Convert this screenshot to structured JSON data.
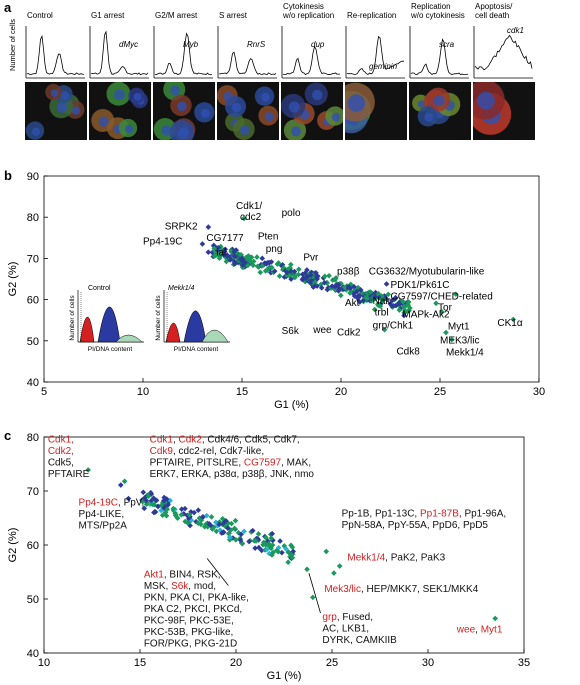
{
  "panel_a": {
    "letter": "a",
    "ylabel": "Number of cells",
    "phenotypes": [
      {
        "label": "Control",
        "gene": ""
      },
      {
        "label": "G1 arrest",
        "gene": "dMyc"
      },
      {
        "label": "G2/M arrest",
        "gene": "Myb"
      },
      {
        "label": "S arrest",
        "gene": "RnrS"
      },
      {
        "label": "Cytokinesis\nw/o replication",
        "gene": "dup"
      },
      {
        "label": "Re-replication",
        "gene": "geminin"
      },
      {
        "label": "Replication\nw/o cytokinesis",
        "gene": "scra"
      },
      {
        "label": "Apoptosis/\ncell death",
        "gene": "cdk1"
      }
    ]
  },
  "panel_b": {
    "letter": "b",
    "chart_data": {
      "type": "scatter",
      "xlabel": "G1 (%)",
      "ylabel": "G2 (%)",
      "xlim": [
        5,
        30
      ],
      "ylim": [
        40,
        90
      ],
      "xticks": [
        "5",
        "10",
        "15",
        "20",
        "25",
        "30"
      ],
      "yticks": [
        "40",
        "50",
        "60",
        "70",
        "80",
        "90"
      ],
      "colors": {
        "green": "#1a9a5a",
        "blue": "#2e3a9a"
      },
      "labels": [
        {
          "text": "Cdk1/",
          "x": 14.7,
          "y": 82.0
        },
        {
          "text": "cdc2",
          "x": 14.9,
          "y": 79.3
        },
        {
          "text": "polo",
          "x": 17.0,
          "y": 80.3
        },
        {
          "text": "SRPK2",
          "x": 11.1,
          "y": 77.0
        },
        {
          "text": "Pp4-19C",
          "x": 10.0,
          "y": 73.4
        },
        {
          "text": "CG7177",
          "x": 13.2,
          "y": 74.2
        },
        {
          "text": "Pten",
          "x": 15.8,
          "y": 74.6
        },
        {
          "text": "png",
          "x": 16.2,
          "y": 71.6
        },
        {
          "text": "ial",
          "x": 13.7,
          "y": 70.7
        },
        {
          "text": "Pvr",
          "x": 18.1,
          "y": 69.5
        },
        {
          "text": "p38β",
          "x": 19.8,
          "y": 66.1
        },
        {
          "text": "CG3632/Myotubularin-like",
          "x": 21.4,
          "y": 66.1
        },
        {
          "text": "PDK1/Pk61C",
          "x": 22.5,
          "y": 62.8
        },
        {
          "text": "CG7597/CHED-related",
          "x": 22.5,
          "y": 60.0
        },
        {
          "text": "Tor",
          "x": 24.9,
          "y": 57.3
        },
        {
          "text": "Nak",
          "x": 21.6,
          "y": 58.9
        },
        {
          "text": "trbl",
          "x": 21.7,
          "y": 56.2
        },
        {
          "text": "MAPk-Ak2",
          "x": 23.1,
          "y": 55.6
        },
        {
          "text": "Akt",
          "x": 20.2,
          "y": 58.4
        },
        {
          "text": "grp/Chk1",
          "x": 21.6,
          "y": 53.0
        },
        {
          "text": "S6k",
          "x": 17.0,
          "y": 51.6
        },
        {
          "text": "wee",
          "x": 18.6,
          "y": 51.9
        },
        {
          "text": "Cdk2",
          "x": 19.8,
          "y": 51.3
        },
        {
          "text": "Cdk8",
          "x": 22.8,
          "y": 46.7
        },
        {
          "text": "Myt1",
          "x": 25.4,
          "y": 52.8
        },
        {
          "text": "MEK3/lic",
          "x": 25.0,
          "y": 49.4
        },
        {
          "text": "Mekk1/4",
          "x": 25.3,
          "y": 46.4
        },
        {
          "text": "CK1α",
          "x": 27.9,
          "y": 53.6
        }
      ],
      "outlier_points": [
        {
          "x": 15.1,
          "y": 79.7,
          "c": "green"
        },
        {
          "x": 13.3,
          "y": 77.6,
          "c": "blue"
        },
        {
          "x": 13.0,
          "y": 73.5,
          "c": "blue"
        },
        {
          "x": 13.6,
          "y": 72.4,
          "c": "green"
        },
        {
          "x": 13.3,
          "y": 71.5,
          "c": "blue"
        },
        {
          "x": 25.8,
          "y": 61.3,
          "c": "green"
        },
        {
          "x": 25.1,
          "y": 57.0,
          "c": "green"
        },
        {
          "x": 22.2,
          "y": 52.7,
          "c": "green"
        },
        {
          "x": 25.3,
          "y": 52.0,
          "c": "green"
        },
        {
          "x": 25.6,
          "y": 50.3,
          "c": "green"
        },
        {
          "x": 28.7,
          "y": 55.2,
          "c": "green"
        },
        {
          "x": 21.7,
          "y": 57.6,
          "c": "green"
        },
        {
          "x": 22.3,
          "y": 63.8,
          "c": "blue"
        },
        {
          "x": 24.8,
          "y": 59.1,
          "c": "green"
        }
      ],
      "cloud": {
        "x_range": [
          13.5,
          23.5
        ],
        "y_range": [
          58,
          72
        ],
        "n": 360
      }
    },
    "insets": [
      {
        "title": "Control",
        "ylabel": "Number of cells",
        "xlabel": "PI/DNA content"
      },
      {
        "title": "Mekk1/4",
        "ylabel": "Number of cells",
        "xlabel": "PI/DNA content"
      }
    ]
  },
  "panel_c": {
    "letter": "c",
    "chart_data": {
      "type": "scatter",
      "xlabel": "G1 (%)",
      "ylabel": "G2 (%)",
      "xlim": [
        10,
        35
      ],
      "ylim": [
        40,
        80
      ],
      "xticks": [
        "10",
        "15",
        "20",
        "25",
        "30",
        "35"
      ],
      "yticks": [
        "40",
        "50",
        "60",
        "70",
        "80"
      ],
      "colors": {
        "green": "#1a9a5a",
        "blue": "#2e3a9a",
        "cyan": "#28b0d8",
        "red": "#d42020"
      },
      "text_blocks": [
        {
          "x": 10.2,
          "y": 79.0,
          "lines": [
            [
              {
                "t": "Cdk1,",
                "c": "red"
              }
            ],
            [
              {
                "t": "Cdk2,",
                "c": "red"
              }
            ],
            [
              {
                "t": "Cdk5,",
                "c": "black"
              }
            ],
            [
              {
                "t": "PFTAIRE",
                "c": "black"
              }
            ]
          ]
        },
        {
          "x": 15.5,
          "y": 79.0,
          "lines": [
            [
              {
                "t": "Cdk1",
                "c": "red"
              },
              {
                "t": ", ",
                "c": "black"
              },
              {
                "t": "Cdk2",
                "c": "red"
              },
              {
                "t": ", Cdk4/6, Cdk5, Cdk7,",
                "c": "black"
              }
            ],
            [
              {
                "t": "Cdk9",
                "c": "red"
              },
              {
                "t": ", cdc2-rel, Cdk7-like,",
                "c": "black"
              }
            ],
            [
              {
                "t": "PFTAIRE, PITSLRE, ",
                "c": "black"
              },
              {
                "t": "CG7597",
                "c": "red"
              },
              {
                "t": ", MAK,",
                "c": "black"
              }
            ],
            [
              {
                "t": "ERK7, ERKA, p38α, p38β, JNK, nmo",
                "c": "black"
              }
            ]
          ]
        },
        {
          "x": 11.8,
          "y": 67.3,
          "lines": [
            [
              {
                "t": "Pp4-19C",
                "c": "red"
              },
              {
                "t": ", PpV,",
                "c": "black"
              }
            ],
            [
              {
                "t": "Pp4-LIKE,",
                "c": "black"
              }
            ],
            [
              {
                "t": "MTS/Pp2A",
                "c": "black"
              }
            ]
          ]
        },
        {
          "x": 25.5,
          "y": 65.3,
          "lines": [
            [
              {
                "t": "Pp-1B, Pp1-13C, ",
                "c": "black"
              },
              {
                "t": "Pp1-87B",
                "c": "red"
              },
              {
                "t": ", Pp1-96A,",
                "c": "black"
              }
            ],
            [
              {
                "t": "PpN-58A, PpY-55A, PpD6, PpD5",
                "c": "black"
              }
            ]
          ]
        },
        {
          "x": 25.8,
          "y": 57.1,
          "lines": [
            [
              {
                "t": "Mekk1/4",
                "c": "red"
              },
              {
                "t": ", PaK2, PaK3",
                "c": "black"
              }
            ]
          ]
        },
        {
          "x": 24.6,
          "y": 51.3,
          "lines": [
            [
              {
                "t": "Mek3/lic",
                "c": "red"
              },
              {
                "t": ", HEP/MKK7, SEK1/MKK4",
                "c": "black"
              }
            ]
          ]
        },
        {
          "x": 24.5,
          "y": 46.1,
          "lines": [
            [
              {
                "t": "grp",
                "c": "red"
              },
              {
                "t": ", Fused,",
                "c": "black"
              }
            ],
            [
              {
                "t": "AC, LKB1,",
                "c": "black"
              }
            ],
            [
              {
                "t": "DYRK, CAMKIIB",
                "c": "black"
              }
            ]
          ]
        },
        {
          "x": 15.2,
          "y": 54.0,
          "lines": [
            [
              {
                "t": "Akt1",
                "c": "red"
              },
              {
                "t": ", BIN4, RSK,",
                "c": "black"
              }
            ],
            [
              {
                "t": "MSK, ",
                "c": "black"
              },
              {
                "t": "S6k",
                "c": "red"
              },
              {
                "t": ", mod,",
                "c": "black"
              }
            ],
            [
              {
                "t": "PKN, PKA CI, PKA-like,",
                "c": "black"
              }
            ],
            [
              {
                "t": "PKA C2, PKCI, PKCd,",
                "c": "black"
              }
            ],
            [
              {
                "t": "PKC-98F, PKC-53E,",
                "c": "black"
              }
            ],
            [
              {
                "t": "PKC-53B, PKG-like,",
                "c": "black"
              }
            ],
            [
              {
                "t": "FOR/PKG, PKG-21D",
                "c": "black"
              }
            ]
          ]
        },
        {
          "x": 31.5,
          "y": 43.8,
          "lines": [
            [
              {
                "t": "wee",
                "c": "red"
              },
              {
                "t": ", ",
                "c": "black"
              },
              {
                "t": "Myt1",
                "c": "red"
              }
            ]
          ]
        }
      ],
      "outlier_points": [
        {
          "x": 12.3,
          "y": 73.9,
          "c": "green"
        },
        {
          "x": 14.0,
          "y": 71.1,
          "c": "blue"
        },
        {
          "x": 14.4,
          "y": 68.6,
          "c": "blue"
        },
        {
          "x": 14.2,
          "y": 71.8,
          "c": "green"
        },
        {
          "x": 24.7,
          "y": 58.8,
          "c": "green"
        },
        {
          "x": 25.4,
          "y": 56.1,
          "c": "green"
        },
        {
          "x": 25.1,
          "y": 54.8,
          "c": "green"
        },
        {
          "x": 23.7,
          "y": 55.5,
          "c": "green"
        },
        {
          "x": 33.5,
          "y": 46.4,
          "c": "green"
        },
        {
          "x": 24.0,
          "y": 50.3,
          "c": "green"
        },
        {
          "x": 22.6,
          "y": 59.3,
          "c": "cyan"
        },
        {
          "x": 16.1,
          "y": 66.4,
          "c": "cyan"
        }
      ],
      "cloud": {
        "x_range": [
          15.0,
          23.0
        ],
        "y_range": [
          58.5,
          68.5
        ],
        "n": 180
      }
    }
  }
}
